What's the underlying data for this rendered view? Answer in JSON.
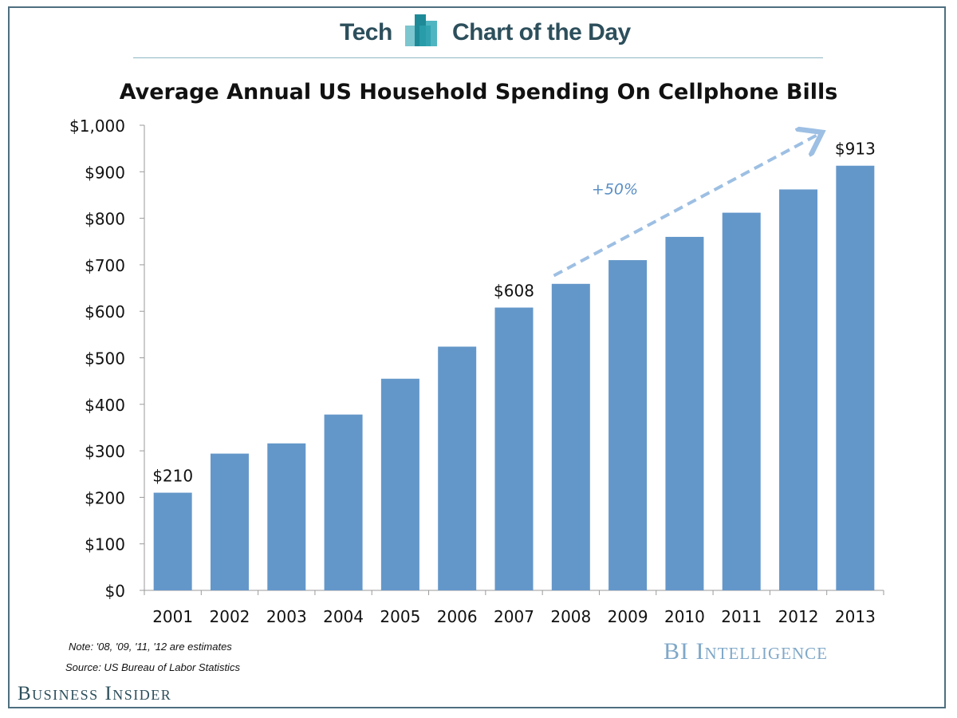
{
  "header": {
    "section_label": "Tech",
    "series_label": "Chart of the Day"
  },
  "footer": {
    "note": "Note: '08, '09, '11, '12 are estimates",
    "source": "Source: US Bureau of Labor Statistics",
    "intelligence_brand": "BI Intelligence",
    "publisher_brand": "Business Insider"
  },
  "colors": {
    "bar": "#6497c9",
    "arrow": "#9dbfe3",
    "annotation_text": "#5b8fc5",
    "header_text": "#2d4f5c"
  },
  "chart_data": {
    "type": "bar",
    "title": "Average Annual US Household Spending On Cellphone Bills",
    "xlabel": "",
    "ylabel": "",
    "categories": [
      "2001",
      "2002",
      "2003",
      "2004",
      "2005",
      "2006",
      "2007",
      "2008",
      "2009",
      "2010",
      "2011",
      "2012",
      "2013"
    ],
    "values": [
      210,
      294,
      316,
      378,
      455,
      524,
      608,
      659,
      710,
      760,
      812,
      862,
      913
    ],
    "ylim": [
      0,
      1000
    ],
    "yticks": [
      0,
      100,
      200,
      300,
      400,
      500,
      600,
      700,
      800,
      900,
      1000
    ],
    "ytick_labels": [
      "$0",
      "$100",
      "$200",
      "$300",
      "$400",
      "$500",
      "$600",
      "$700",
      "$800",
      "$900",
      "$1,000"
    ],
    "grid": false,
    "data_labels": [
      {
        "category": "2001",
        "text": "$210"
      },
      {
        "category": "2007",
        "text": "$608"
      },
      {
        "category": "2013",
        "text": "$913"
      }
    ],
    "annotation": {
      "from_category": "2007",
      "to_category": "2013",
      "text": "+50%",
      "style": "dashed-arrow"
    }
  }
}
